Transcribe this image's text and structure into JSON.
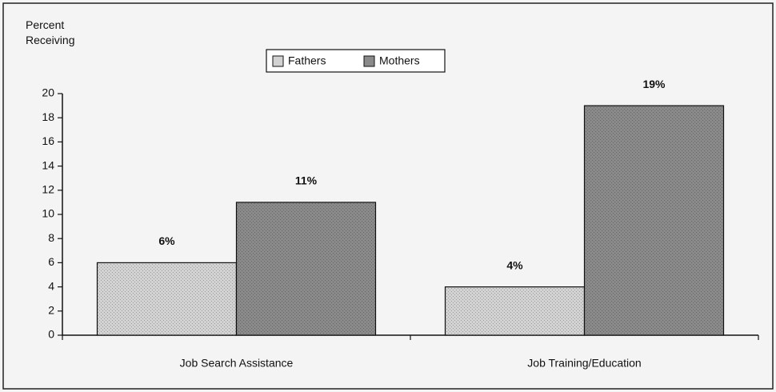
{
  "chart_data": {
    "type": "bar",
    "y_label": "Percent Receiving",
    "categories": [
      "Job Search Assistance",
      "Job Training/Education"
    ],
    "series": [
      {
        "name": "Fathers",
        "color": "#d2d2d2",
        "values": [
          6,
          4
        ],
        "value_labels": [
          "6%",
          "4%"
        ]
      },
      {
        "name": "Mothers",
        "color": "#8a8a8a",
        "values": [
          11,
          19
        ],
        "value_labels": [
          "11%",
          "19%"
        ]
      }
    ],
    "ylim": [
      0,
      20
    ],
    "yticks": [
      0,
      2,
      4,
      6,
      8,
      10,
      12,
      14,
      16,
      18,
      20
    ],
    "grid": false,
    "legend": "top"
  }
}
